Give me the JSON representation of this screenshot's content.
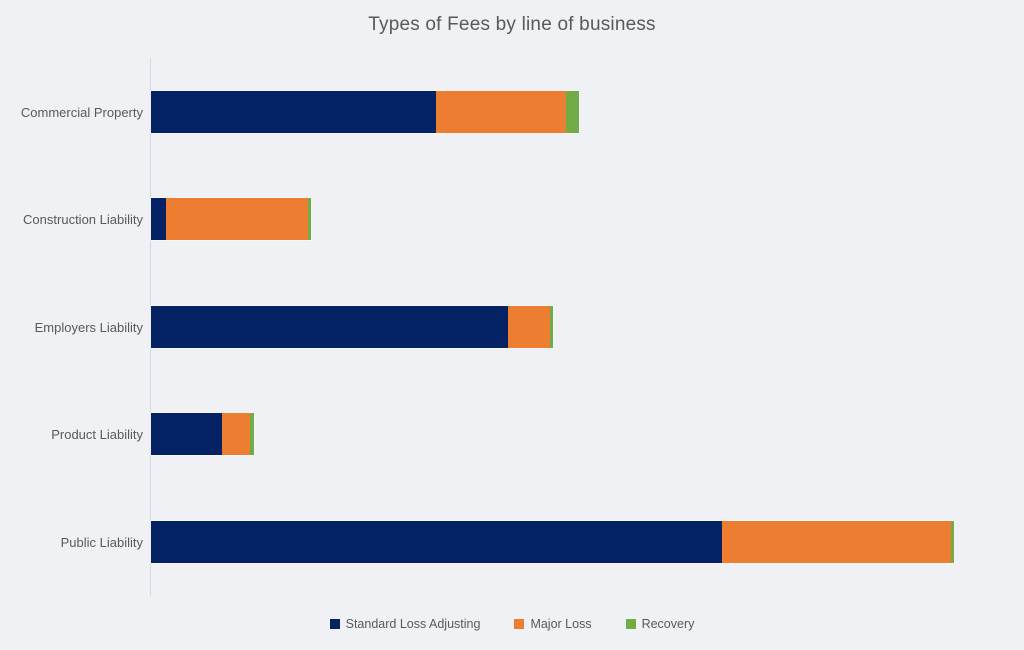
{
  "chart_data": {
    "type": "bar",
    "orientation": "horizontal",
    "stacked": true,
    "title": "Types of Fees by line of business",
    "categories": [
      "Commercial Property",
      "Construction Liability",
      "Employers Liability",
      "Product Liability",
      "Public Liability"
    ],
    "series": [
      {
        "name": "Standard Loss Adjusting",
        "color": "#052264",
        "values": [
          285,
          15,
          357,
          71,
          571
        ]
      },
      {
        "name": "Major Loss",
        "color": "#ED7D31",
        "values": [
          130,
          142,
          42,
          28,
          229
        ]
      },
      {
        "name": "Recovery",
        "color": "#70AD47",
        "values": [
          13,
          3,
          3,
          4,
          3
        ]
      }
    ],
    "value_note": "relative units estimated from bar lengths; no value axis labels shown",
    "xlim": [
      0,
      860
    ],
    "grid": false,
    "legend_position": "bottom",
    "axis_line_color": "#d6d9e0",
    "background_color": "#f0f1f5",
    "text_color": "#595959"
  }
}
